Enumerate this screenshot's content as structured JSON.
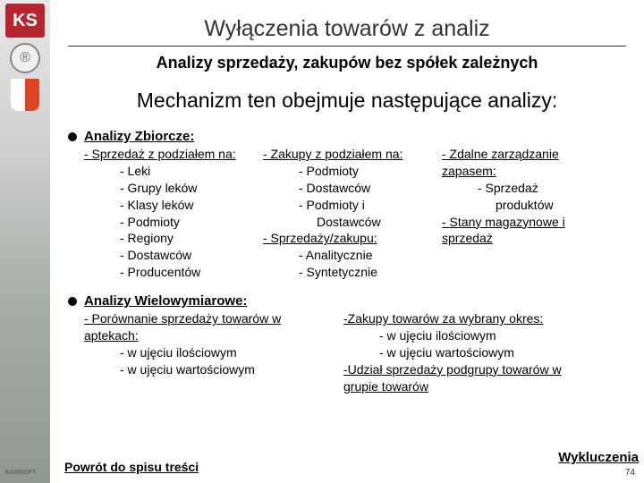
{
  "sidebar": {
    "logo_text": "KS",
    "badge_glyph": "®",
    "kamsoft_label": "KAMSOFT"
  },
  "title": "Wyłączenia towarów z analiz",
  "subtitle": "Analizy sprzedaży, zakupów bez spółek zależnych",
  "mechanism": "Mechanizm ten obejmuje następujące analizy:",
  "zbiorcze": {
    "heading": "Analizy Zbiorcze:",
    "col1": {
      "head": "- Sprzedaż z podziałem na:",
      "items": [
        "- Leki",
        "- Grupy leków",
        "- Klasy leków",
        "- Podmioty",
        "- Regiony",
        "- Dostawców",
        "- Producentów"
      ]
    },
    "col2": {
      "head": "- Zakupy z podziałem na:",
      "items": [
        "- Podmioty",
        "- Dostawców",
        "- Podmioty i",
        "Dostawców"
      ],
      "head2": "- Sprzedaży/zakupu:",
      "items2": [
        "- Analitycznie",
        "- Syntetycznie"
      ]
    },
    "col3": {
      "head": "- Zdalne zarządzanie",
      "head_b": "zapasem:",
      "items": [
        "- Sprzedaż",
        "produktów"
      ],
      "line2a": "- Stany magazynowe i",
      "line2b": "sprzedaż"
    }
  },
  "wielo": {
    "heading": "Analizy Wielowymiarowe:",
    "col1": {
      "head_a": "- Porównanie sprzedaży towarów w",
      "head_b": "aptekach:",
      "items": [
        "- w ujęciu ilościowym",
        "- w ujęciu wartościowym"
      ]
    },
    "col2": {
      "head1": "-Zakupy towarów za wybrany okres:",
      "items1": [
        "- w ujęciu ilościowym",
        "- w ujęciu wartościowym"
      ],
      "head2a": "-Udział sprzedaży podgrupy towarów w",
      "head2b": "grupie towarów"
    }
  },
  "wykluczenia": "Wykluczenia",
  "powrot": "Powrót do spisu treści",
  "page_number": "74"
}
